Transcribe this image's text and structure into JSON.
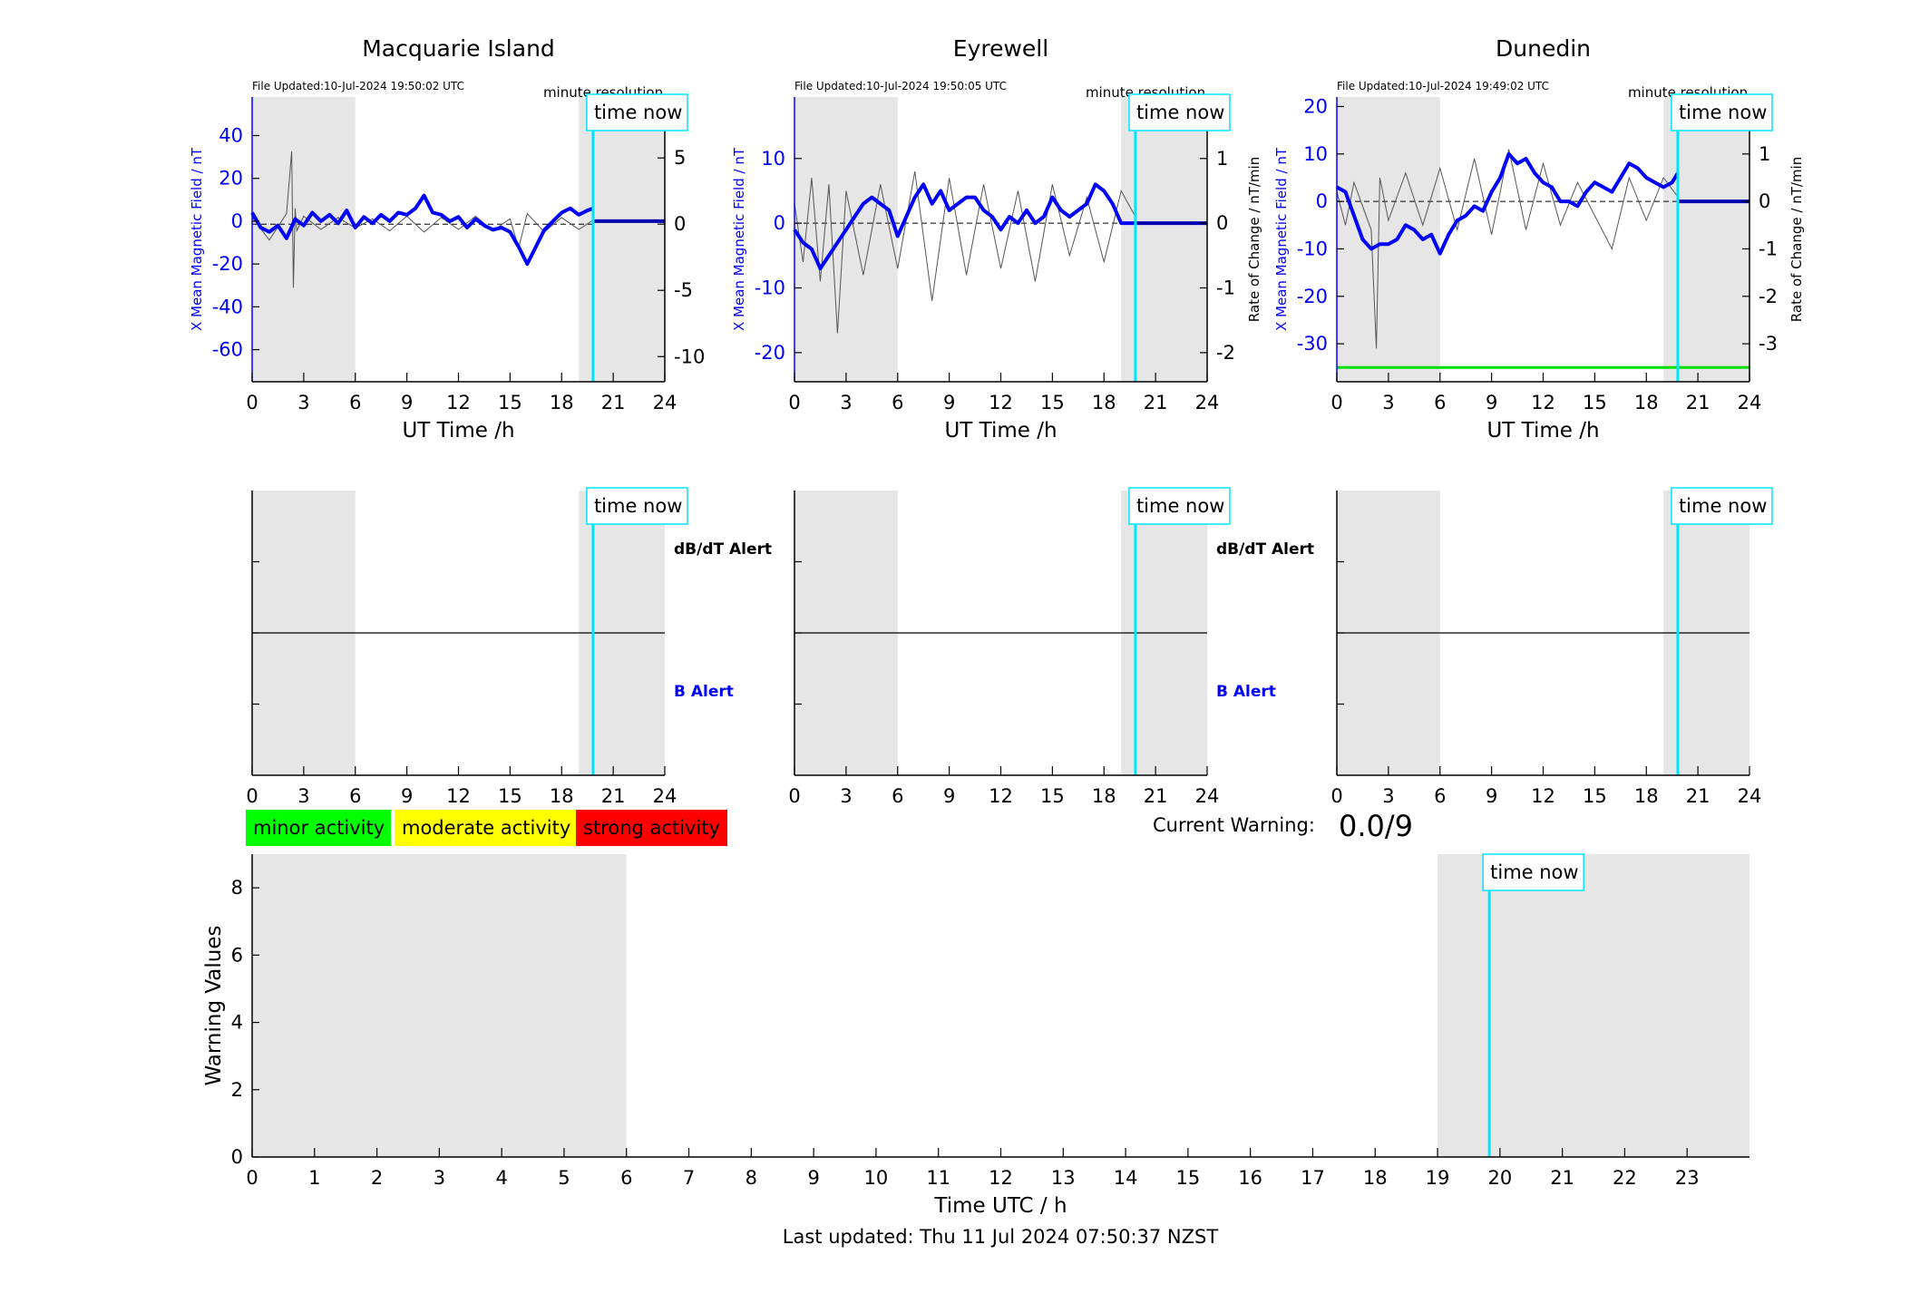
{
  "colors": {
    "shade": "#e6e6e6",
    "mean_field": "#0000ff",
    "rate": "#555555",
    "time_now": "#00e5ff",
    "axis": "#000000",
    "threshold": "#00dd00",
    "minor": "#00ff00",
    "moderate": "#ffff00",
    "strong": "#ff0000"
  },
  "time_now_label": "time now",
  "minute_resolution_label": "minute resolution",
  "dbdt_alert_label": "dB/dT Alert",
  "b_alert_label": "B Alert",
  "legend": {
    "minor": "minor activity",
    "moderate": "moderate activity",
    "strong": "strong activity"
  },
  "current_warning": {
    "label": "Current Warning:",
    "value": "0.0/9"
  },
  "footer": "Last updated: Thu 11 Jul 2024 07:50:37 NZST",
  "chart_data": [
    {
      "id": "macquarie",
      "type": "line",
      "title": "Macquarie Island",
      "file_updated": "File Updated:10-Jul-2024 19:50:02 UTC",
      "xlabel": "UT Time /h",
      "ylabel_left": "X Mean Magnetic Field / nT",
      "ylabel_right": "",
      "xlim": [
        0,
        24
      ],
      "xticks": [
        0,
        3,
        6,
        9,
        12,
        15,
        18,
        21,
        24
      ],
      "ylim_left": [
        -75,
        58
      ],
      "yticks_left": [
        -60,
        -40,
        -20,
        0,
        20,
        40
      ],
      "ylim_right": [
        -11.9,
        9.6
      ],
      "yticks_right": [
        -10,
        -5,
        0,
        5
      ],
      "shaded": [
        [
          0,
          6
        ],
        [
          19,
          24
        ]
      ],
      "time_now": 19.83,
      "mean_field_x": [
        0,
        0.5,
        1,
        1.5,
        2,
        2.5,
        3,
        3.5,
        4,
        4.5,
        5,
        5.5,
        6,
        6.5,
        7,
        7.5,
        8,
        8.5,
        9,
        9.5,
        10,
        10.5,
        11,
        11.5,
        12,
        12.5,
        13,
        13.5,
        14,
        14.5,
        15,
        15.5,
        16,
        16.5,
        17,
        17.5,
        18,
        18.5,
        19,
        19.5,
        19.83
      ],
      "mean_field_y": [
        4,
        -3,
        -5,
        -2,
        -8,
        1,
        -2,
        4,
        0,
        3,
        -1,
        5,
        -3,
        2,
        -1,
        3,
        0,
        4,
        3,
        6,
        12,
        4,
        3,
        0,
        2,
        -3,
        1,
        -2,
        -4,
        -3,
        -5,
        -12,
        -20,
        -12,
        -4,
        0,
        4,
        6,
        3,
        5,
        6
      ],
      "rate_x": [
        0,
        1,
        2,
        2.3,
        2.4,
        2.5,
        2.6,
        3,
        4,
        5,
        6,
        7,
        8,
        9,
        10,
        11,
        12,
        13,
        14,
        15,
        15.5,
        16,
        17,
        18,
        19,
        19.83
      ],
      "rate_y": [
        0.5,
        -1.2,
        0.8,
        5.5,
        -4.8,
        1.2,
        -0.5,
        0.6,
        -0.4,
        0.5,
        -0.3,
        0.4,
        -0.5,
        0.6,
        -0.6,
        0.5,
        -0.4,
        0.6,
        -0.5,
        0.4,
        -1.8,
        0.8,
        -0.6,
        0.5,
        -0.4,
        0.3
      ],
      "rate_dashed_x": [
        0,
        19.83
      ],
      "rate_dashed_y": [
        0,
        0
      ],
      "after_now_x": [
        19.83,
        24
      ],
      "after_now_y": [
        0,
        0
      ]
    },
    {
      "id": "eyrewell",
      "type": "line",
      "title": "Eyrewell",
      "file_updated": "File Updated:10-Jul-2024 19:50:05 UTC",
      "xlabel": "UT Time /h",
      "ylabel_left": "X Mean Magnetic Field / nT",
      "ylabel_right": "Rate of Change / nT/min",
      "xlim": [
        0,
        24
      ],
      "xticks": [
        0,
        3,
        6,
        9,
        12,
        15,
        18,
        21,
        24
      ],
      "ylim_left": [
        -24.5,
        19.5
      ],
      "yticks_left": [
        -20,
        -10,
        0,
        10
      ],
      "ylim_right": [
        -2.45,
        1.95
      ],
      "yticks_right": [
        -2,
        -1,
        0,
        1
      ],
      "shaded": [
        [
          0,
          6
        ],
        [
          19,
          24
        ]
      ],
      "time_now": 19.83,
      "mean_field_x": [
        0,
        0.5,
        1,
        1.5,
        2,
        2.5,
        3,
        3.5,
        4,
        4.5,
        5,
        5.5,
        6,
        6.5,
        7,
        7.5,
        8,
        8.5,
        9,
        9.5,
        10,
        10.5,
        11,
        11.5,
        12,
        12.5,
        13,
        13.5,
        14,
        14.5,
        15,
        15.5,
        16,
        16.5,
        17,
        17.5,
        18,
        18.5,
        19,
        19.5,
        19.83
      ],
      "mean_field_y": [
        -1,
        -3,
        -4,
        -7,
        -5,
        -3,
        -1,
        1,
        3,
        4,
        3,
        2,
        -2,
        1,
        4,
        6,
        3,
        5,
        2,
        3,
        4,
        4,
        2,
        1,
        -1,
        1,
        0,
        2,
        0,
        1,
        4,
        2,
        1,
        2,
        3,
        6,
        5,
        3,
        0,
        0,
        0
      ],
      "rate_x": [
        0,
        0.5,
        1,
        1.5,
        2,
        2.5,
        3,
        4,
        5,
        6,
        7,
        8,
        9,
        10,
        11,
        12,
        13,
        14,
        15,
        16,
        17,
        18,
        19,
        19.83
      ],
      "rate_y": [
        0.3,
        -0.6,
        0.7,
        -0.9,
        0.6,
        -1.7,
        0.5,
        -0.8,
        0.6,
        -0.7,
        0.8,
        -1.2,
        0.7,
        -0.8,
        0.6,
        -0.7,
        0.5,
        -0.9,
        0.6,
        -0.5,
        0.4,
        -0.6,
        0.5,
        0.1
      ],
      "rate_dashed_x": [
        0,
        19.83
      ],
      "rate_dashed_y": [
        0,
        0
      ],
      "after_now_x": [
        19.83,
        24
      ],
      "after_now_y": [
        0,
        0
      ]
    },
    {
      "id": "dunedin",
      "type": "line",
      "title": "Dunedin",
      "file_updated": "File Updated:10-Jul-2024 19:49:02 UTC",
      "xlabel": "UT Time /h",
      "ylabel_left": "X Mean Magnetic Field / nT",
      "ylabel_right": "Rate of Change / nT/min",
      "xlim": [
        0,
        24
      ],
      "xticks": [
        0,
        3,
        6,
        9,
        12,
        15,
        18,
        21,
        24
      ],
      "ylim_left": [
        -38,
        22
      ],
      "yticks_left": [
        -30,
        -20,
        -10,
        0,
        10,
        20
      ],
      "ylim_right": [
        -3.8,
        2.2
      ],
      "yticks_right": [
        -3,
        -2,
        -1,
        0,
        1,
        2
      ],
      "shaded": [
        [
          0,
          6
        ],
        [
          19,
          24
        ]
      ],
      "time_now": 19.83,
      "threshold_y": -35,
      "mean_field_x": [
        0,
        0.5,
        1,
        1.5,
        2,
        2.5,
        3,
        3.5,
        4,
        4.5,
        5,
        5.5,
        6,
        6.5,
        7,
        7.5,
        8,
        8.5,
        9,
        9.5,
        10,
        10.5,
        11,
        11.5,
        12,
        12.5,
        13,
        13.5,
        14,
        14.5,
        15,
        15.5,
        16,
        16.5,
        17,
        17.5,
        18,
        18.5,
        19,
        19.5,
        19.83
      ],
      "mean_field_y": [
        3,
        2,
        -3,
        -8,
        -10,
        -9,
        -9,
        -8,
        -5,
        -6,
        -8,
        -7,
        -11,
        -7,
        -4,
        -3,
        -1,
        -2,
        2,
        5,
        10,
        8,
        9,
        6,
        4,
        3,
        0,
        0,
        -1,
        2,
        4,
        3,
        2,
        5,
        8,
        7,
        5,
        4,
        3,
        4,
        6
      ],
      "rate_x": [
        0,
        0.5,
        1,
        2,
        2.3,
        2.5,
        3,
        4,
        5,
        6,
        7,
        8,
        9,
        10,
        11,
        12,
        13,
        14,
        15,
        16,
        17,
        18,
        19,
        19.83
      ],
      "rate_y": [
        0.2,
        -0.5,
        0.4,
        -0.6,
        -3.1,
        0.5,
        -0.4,
        0.6,
        -0.5,
        0.7,
        -0.6,
        0.9,
        -0.7,
        1.1,
        -0.6,
        0.8,
        -0.5,
        0.4,
        -0.3,
        -1.0,
        0.5,
        -0.4,
        0.5,
        0.1
      ],
      "rate_dashed_x": [
        0,
        19.83
      ],
      "rate_dashed_y": [
        0,
        0
      ],
      "after_now_x": [
        19.83,
        24
      ],
      "after_now_y": [
        0,
        0
      ]
    },
    {
      "id": "macquarie-alert",
      "type": "line",
      "title": "",
      "xlim": [
        0,
        24
      ],
      "xticks": [
        0,
        3,
        6,
        9,
        12,
        15,
        18,
        21,
        24
      ],
      "ylim_left": [
        0,
        4
      ],
      "yticks_left": [
        1,
        2,
        3
      ],
      "shaded": [
        [
          0,
          6
        ],
        [
          19,
          24
        ]
      ],
      "time_now": 19.83,
      "midline_y": 2
    },
    {
      "id": "eyrewell-alert",
      "type": "line",
      "title": "",
      "xlim": [
        0,
        24
      ],
      "xticks": [
        0,
        3,
        6,
        9,
        12,
        15,
        18,
        21,
        24
      ],
      "ylim_left": [
        0,
        4
      ],
      "yticks_left": [
        1,
        2,
        3
      ],
      "shaded": [
        [
          0,
          6
        ],
        [
          19,
          24
        ]
      ],
      "time_now": 19.83,
      "midline_y": 2
    },
    {
      "id": "dunedin-alert",
      "type": "line",
      "title": "",
      "xlim": [
        0,
        24
      ],
      "xticks": [
        0,
        3,
        6,
        9,
        12,
        15,
        18,
        21,
        24
      ],
      "ylim_left": [
        0,
        4
      ],
      "yticks_left": [
        1,
        2,
        3
      ],
      "shaded": [
        [
          0,
          6
        ],
        [
          19,
          24
        ]
      ],
      "time_now": 19.83,
      "midline_y": 2
    },
    {
      "id": "warning",
      "type": "line",
      "title": "",
      "xlabel": "Time UTC / h",
      "ylabel_left": "Warning Values",
      "xlim": [
        0,
        24
      ],
      "xticks": [
        0,
        1,
        2,
        3,
        4,
        5,
        6,
        7,
        8,
        9,
        10,
        11,
        12,
        13,
        14,
        15,
        16,
        17,
        18,
        19,
        20,
        21,
        22,
        23
      ],
      "ylim_left": [
        0,
        9
      ],
      "yticks_left": [
        0,
        2,
        4,
        6,
        8
      ],
      "shaded": [
        [
          0,
          6
        ],
        [
          19,
          24
        ]
      ],
      "time_now": 19.83
    }
  ]
}
